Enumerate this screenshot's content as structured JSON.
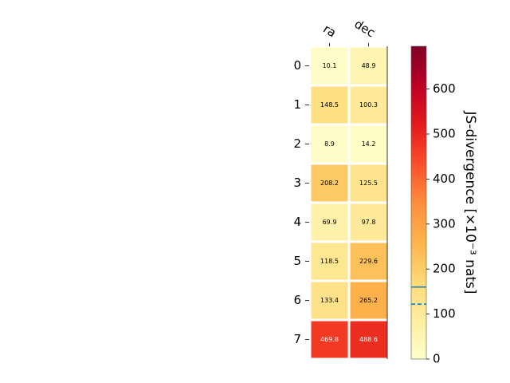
{
  "chart_data": {
    "type": "heatmap",
    "columns": [
      "ra",
      "dec"
    ],
    "rows": [
      "0",
      "1",
      "2",
      "3",
      "4",
      "5",
      "6",
      "7"
    ],
    "values": [
      [
        10.1,
        48.9
      ],
      [
        148.5,
        100.3
      ],
      [
        8.9,
        14.2
      ],
      [
        208.2,
        125.5
      ],
      [
        69.9,
        97.8
      ],
      [
        118.5,
        229.6
      ],
      [
        133.4,
        265.2
      ],
      [
        469.8,
        488.6
      ]
    ],
    "cell_labels": [
      [
        "10.1",
        "48.9"
      ],
      [
        "148.5",
        "100.3"
      ],
      [
        "8.9",
        "14.2"
      ],
      [
        "208.2",
        "125.5"
      ],
      [
        "69.9",
        "97.8"
      ],
      [
        "118.5",
        "229.6"
      ],
      [
        "133.4",
        "265.2"
      ],
      [
        "469.8",
        "488.6"
      ]
    ],
    "colorbar": {
      "label": "JS-divergence [×10⁻³ nats]",
      "range": [
        0,
        695
      ],
      "ticks": [
        0,
        100,
        200,
        300,
        400,
        500,
        600
      ],
      "tick_labels": [
        "0",
        "100",
        "200",
        "300",
        "400",
        "500",
        "600"
      ],
      "colormap": "YlOrRd",
      "reference_lines": [
        {
          "value": 160,
          "style": "solid",
          "color": "#1f77b4"
        },
        {
          "value": 122,
          "style": "dashed",
          "color": "#1f77b4"
        }
      ]
    },
    "grid": false
  }
}
